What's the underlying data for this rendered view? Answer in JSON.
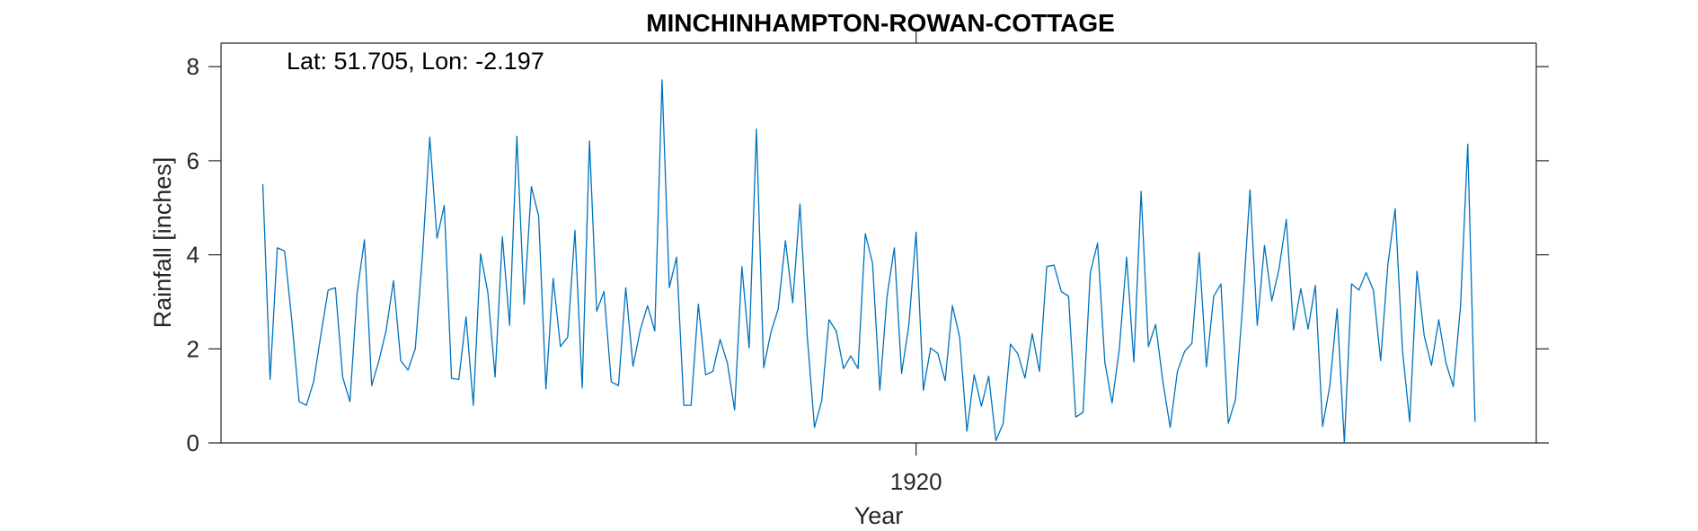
{
  "chart_data": {
    "type": "line",
    "title": "MINCHINHAMPTON-ROWAN-COTTAGE",
    "xlabel": "Year",
    "ylabel": "Rainfall [inches]",
    "annotation": "Lat: 51.705, Lon: -2.197",
    "x_unit": "months, monthly series centred on 1920",
    "xlim": [
      1912.02,
      1927.12
    ],
    "ylim": [
      0,
      8.5
    ],
    "y_ticks": [
      0,
      2,
      4,
      6,
      8
    ],
    "x_ticks": [
      {
        "value": 1920,
        "label": "1920"
      }
    ],
    "grid": false,
    "line_color": "#0072BD",
    "series": [
      {
        "x_start": 1912.5,
        "x_step": 0.083333,
        "values": [
          5.5,
          1.35,
          4.15,
          4.08,
          2.6,
          0.88,
          0.8,
          1.3,
          2.3,
          3.25,
          3.3,
          1.4,
          0.88,
          3.2,
          4.32,
          1.22,
          1.75,
          2.4,
          3.45,
          1.75,
          1.55,
          2.0,
          4.0,
          6.5,
          4.35,
          5.05,
          1.37,
          1.35,
          2.68,
          0.8,
          4.02,
          3.2,
          1.4,
          4.38,
          2.5,
          6.52,
          2.95,
          5.45,
          4.82,
          1.15,
          3.5,
          2.05,
          2.25,
          4.52,
          1.17,
          6.42,
          2.8,
          3.22,
          1.3,
          1.22,
          3.3,
          1.63,
          2.4,
          2.92,
          2.38,
          7.72,
          3.3,
          3.95,
          0.8,
          0.8,
          2.95,
          1.45,
          1.52,
          2.2,
          1.7,
          0.7,
          3.75,
          2.02,
          6.67,
          1.6,
          2.35,
          2.85,
          4.3,
          2.98,
          5.08,
          2.28,
          0.33,
          0.9,
          2.62,
          2.38,
          1.58,
          1.85,
          1.58,
          4.45,
          3.82,
          1.12,
          3.12,
          4.15,
          1.48,
          2.5,
          4.48,
          1.12,
          2.02,
          1.9,
          1.32,
          2.92,
          2.25,
          0.25,
          1.45,
          0.78,
          1.42,
          0.05,
          0.42,
          2.1,
          1.9,
          1.38,
          2.32,
          1.52,
          3.75,
          3.78,
          3.22,
          3.12,
          0.55,
          0.65,
          3.62,
          4.25,
          1.72,
          0.85,
          2.0,
          3.95,
          1.72,
          5.35,
          2.05,
          2.52,
          1.3,
          0.33,
          1.52,
          1.95,
          2.12,
          4.05,
          1.62,
          3.12,
          3.38,
          0.42,
          0.92,
          2.95,
          5.38,
          2.5,
          4.2,
          3.02,
          3.7,
          4.75,
          2.4,
          3.28,
          2.42,
          3.35,
          0.35,
          1.22,
          2.85,
          0.0,
          3.38,
          3.25,
          3.62,
          3.25,
          1.75,
          3.8,
          4.98,
          1.98,
          0.45,
          3.65,
          2.28,
          1.65,
          2.62,
          1.7,
          1.2,
          2.9,
          6.35,
          0.45
        ]
      }
    ]
  }
}
